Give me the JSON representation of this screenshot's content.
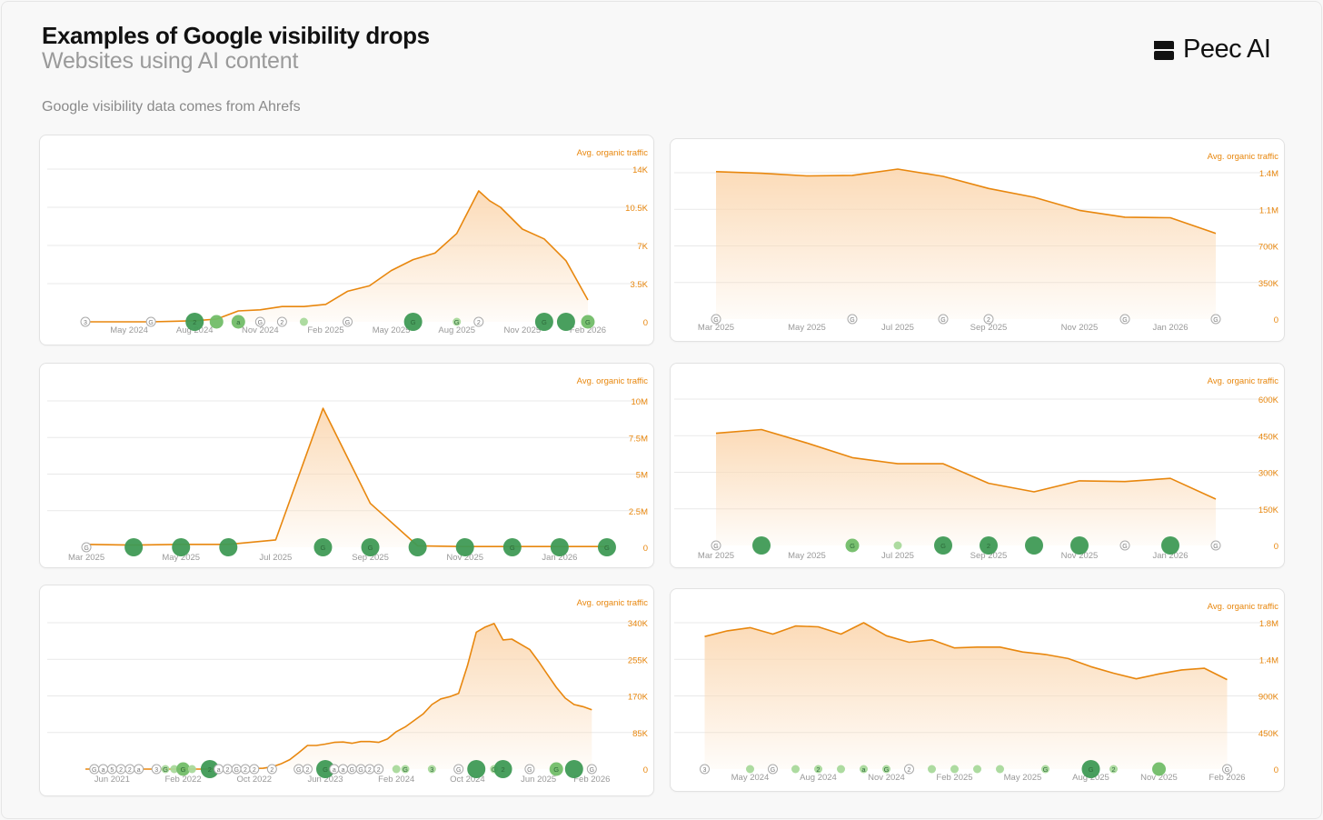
{
  "header": {
    "title": "Examples of Google visibility drops",
    "subtitle": "Websites using AI content",
    "source_note": "Google visibility data comes from Ahrefs",
    "brand": "Peec AI"
  },
  "colors": {
    "line": "#e8870e",
    "fill": "#fbd9b4",
    "axis_text": "#e8870e",
    "tick_text": "#999999",
    "grid": "#e9e9e9",
    "update_strong": "#3f9a55",
    "update_medium": "#72bd68",
    "update_light": "#a9d99b",
    "badge_stroke": "#aaaaaa"
  },
  "chart_data": [
    {
      "type": "area",
      "title": "",
      "ylabel": "Avg. organic traffic",
      "ylim": [
        0,
        14000
      ],
      "yticks": [
        0,
        3500,
        7000,
        10500,
        14000
      ],
      "ytick_labels": [
        "0",
        "3.5K",
        "7K",
        "10.5K",
        "14K"
      ],
      "xlim": [
        0,
        23.5
      ],
      "xticks": [
        2,
        5,
        8,
        11,
        14,
        17,
        20,
        23
      ],
      "xtick_labels": [
        "May 2024",
        "Aug 2024",
        "Nov 2024",
        "Feb 2025",
        "May 2025",
        "Aug 2025",
        "Nov 2025",
        "Feb 2026"
      ],
      "x": [
        0,
        1,
        2,
        3,
        4,
        5,
        6,
        7,
        8,
        9,
        10,
        11,
        12,
        13,
        14,
        15,
        16,
        17,
        18,
        18.5,
        19,
        20,
        21,
        22,
        23
      ],
      "values": [
        0,
        0,
        0,
        0,
        50,
        100,
        250,
        1000,
        1100,
        1400,
        1400,
        1600,
        2800,
        3300,
        4700,
        5700,
        6300,
        8100,
        12000,
        11100,
        10500,
        8500,
        7600,
        5600,
        2000
      ],
      "updates": [
        {
          "x": 0,
          "kind": "badge",
          "label": "3"
        },
        {
          "x": 3,
          "kind": "badge",
          "label": "G"
        },
        {
          "x": 5,
          "kind": "bubble",
          "size": 3,
          "label": "2"
        },
        {
          "x": 6,
          "kind": "bubble",
          "size": 2,
          "label": ""
        },
        {
          "x": 7,
          "kind": "bubble",
          "size": 2,
          "label": "a"
        },
        {
          "x": 8,
          "kind": "badge",
          "label": "G"
        },
        {
          "x": 9,
          "kind": "badge",
          "label": "2"
        },
        {
          "x": 10,
          "kind": "bubble",
          "size": 1,
          "label": ""
        },
        {
          "x": 12,
          "kind": "badge",
          "label": "G"
        },
        {
          "x": 15,
          "kind": "bubble",
          "size": 3,
          "label": "G"
        },
        {
          "x": 17,
          "kind": "bubble",
          "size": 1,
          "label": "G"
        },
        {
          "x": 18,
          "kind": "badge",
          "label": "2"
        },
        {
          "x": 21,
          "kind": "bubble",
          "size": 3,
          "label": "G"
        },
        {
          "x": 22,
          "kind": "bubble",
          "size": 3,
          "label": ""
        },
        {
          "x": 23,
          "kind": "bubble",
          "size": 2,
          "label": "G"
        }
      ]
    },
    {
      "type": "area",
      "title": "",
      "ylabel": "Avg. organic traffic",
      "ylim": [
        0,
        1400000
      ],
      "yticks": [
        0,
        350000,
        700000,
        1050000,
        1400000
      ],
      "ytick_labels": [
        "0",
        "350K",
        "700K",
        "1.1M",
        "1.4M"
      ],
      "xlim": [
        -0.5,
        11.5
      ],
      "xticks": [
        0,
        2,
        4,
        6,
        8,
        10
      ],
      "xtick_labels": [
        "Mar 2025",
        "May 2025",
        "Jul 2025",
        "Sep 2025",
        "Nov 2025",
        "Jan 2026"
      ],
      "x": [
        0,
        1,
        2,
        3,
        4,
        5,
        6,
        7,
        8,
        9,
        10,
        11
      ],
      "values": [
        1410000,
        1395000,
        1370000,
        1375000,
        1435000,
        1365000,
        1250000,
        1165000,
        1040000,
        975000,
        970000,
        820000
      ],
      "updates": [
        {
          "x": 0,
          "kind": "badge",
          "label": "G"
        },
        {
          "x": 3,
          "kind": "badge",
          "label": "G"
        },
        {
          "x": 5,
          "kind": "badge",
          "label": "G"
        },
        {
          "x": 6,
          "kind": "badge",
          "label": "2"
        },
        {
          "x": 9,
          "kind": "badge",
          "label": "G"
        },
        {
          "x": 11,
          "kind": "badge",
          "label": "G"
        }
      ]
    },
    {
      "type": "area",
      "title": "",
      "ylabel": "Avg. organic traffic",
      "ylim": [
        0,
        10000000
      ],
      "yticks": [
        0,
        2500000,
        5000000,
        7500000,
        10000000
      ],
      "ytick_labels": [
        "0",
        "2.5M",
        "5M",
        "7.5M",
        "10M"
      ],
      "xlim": [
        -0.5,
        11.5
      ],
      "xticks": [
        0,
        2,
        4,
        6,
        8,
        10
      ],
      "xtick_labels": [
        "Mar 2025",
        "May 2025",
        "Jul 2025",
        "Sep 2025",
        "Nov 2025",
        "Jan 2026"
      ],
      "x": [
        0,
        1,
        2,
        3,
        4,
        5,
        6,
        7,
        8,
        9,
        10,
        11
      ],
      "values": [
        200000,
        150000,
        200000,
        200000,
        500000,
        9500000,
        3000000,
        100000,
        50000,
        50000,
        50000,
        50000
      ],
      "updates": [
        {
          "x": 0,
          "kind": "badge",
          "label": "G"
        },
        {
          "x": 1,
          "kind": "bubble",
          "size": 3,
          "label": ""
        },
        {
          "x": 2,
          "kind": "bubble",
          "size": 3,
          "label": ""
        },
        {
          "x": 3,
          "kind": "bubble",
          "size": 3,
          "label": ""
        },
        {
          "x": 5,
          "kind": "bubble",
          "size": 3,
          "label": "G"
        },
        {
          "x": 6,
          "kind": "bubble",
          "size": 3,
          "label": "G"
        },
        {
          "x": 7,
          "kind": "bubble",
          "size": 3,
          "label": ""
        },
        {
          "x": 8,
          "kind": "bubble",
          "size": 3,
          "label": ""
        },
        {
          "x": 9,
          "kind": "bubble",
          "size": 3,
          "label": "G"
        },
        {
          "x": 10,
          "kind": "bubble",
          "size": 3,
          "label": ""
        },
        {
          "x": 11,
          "kind": "bubble",
          "size": 3,
          "label": "G"
        }
      ]
    },
    {
      "type": "area",
      "title": "",
      "ylabel": "Avg. organic traffic",
      "ylim": [
        0,
        600000
      ],
      "yticks": [
        0,
        150000,
        300000,
        450000,
        600000
      ],
      "ytick_labels": [
        "0",
        "150K",
        "300K",
        "450K",
        "600K"
      ],
      "xlim": [
        -0.5,
        11.5
      ],
      "xticks": [
        0,
        2,
        4,
        6,
        8,
        10
      ],
      "xtick_labels": [
        "Mar 2025",
        "May 2025",
        "Jul 2025",
        "Sep 2025",
        "Nov 2025",
        "Jan 2026"
      ],
      "x": [
        0,
        1,
        2,
        3,
        4,
        5,
        6,
        7,
        8,
        9,
        10,
        11
      ],
      "values": [
        460000,
        475000,
        420000,
        360000,
        335000,
        335000,
        255000,
        220000,
        265000,
        262000,
        275000,
        190000
      ],
      "updates": [
        {
          "x": 0,
          "kind": "badge",
          "label": "G"
        },
        {
          "x": 1,
          "kind": "bubble",
          "size": 3,
          "label": ""
        },
        {
          "x": 3,
          "kind": "bubble",
          "size": 2,
          "label": "G"
        },
        {
          "x": 4,
          "kind": "bubble",
          "size": 1,
          "label": ""
        },
        {
          "x": 5,
          "kind": "bubble",
          "size": 3,
          "label": "G"
        },
        {
          "x": 6,
          "kind": "bubble",
          "size": 3,
          "label": "2"
        },
        {
          "x": 7,
          "kind": "bubble",
          "size": 3,
          "label": ""
        },
        {
          "x": 8,
          "kind": "bubble",
          "size": 3,
          "label": ""
        },
        {
          "x": 9,
          "kind": "badge",
          "label": "G"
        },
        {
          "x": 10,
          "kind": "bubble",
          "size": 3,
          "label": ""
        },
        {
          "x": 11,
          "kind": "badge",
          "label": "G"
        }
      ]
    },
    {
      "type": "area",
      "title": "",
      "ylabel": "Avg. organic traffic",
      "ylim": [
        0,
        340000
      ],
      "yticks": [
        0,
        85000,
        170000,
        255000,
        340000
      ],
      "ytick_labels": [
        "0",
        "85K",
        "170K",
        "255K",
        "340K"
      ],
      "xlim": [
        0,
        58.5
      ],
      "xticks": [
        3,
        11,
        19,
        27,
        35,
        43,
        51,
        57
      ],
      "xtick_labels": [
        "Jun 2021",
        "Feb 2022",
        "Oct 2022",
        "Jun 2023",
        "Feb 2024",
        "Oct 2024",
        "Jun 2025",
        "Feb 2026"
      ],
      "x": [
        0,
        5,
        10,
        15,
        20,
        21,
        22,
        23,
        24,
        25,
        26,
        27,
        28,
        29,
        30,
        31,
        32,
        33,
        34,
        35,
        36,
        37,
        38,
        39,
        40,
        41,
        42,
        43,
        44,
        45,
        46,
        47,
        48,
        49,
        50,
        51,
        52,
        53,
        54,
        55,
        56,
        57
      ],
      "values": [
        0,
        0,
        0,
        0,
        2000,
        5000,
        12000,
        22000,
        38000,
        55000,
        55000,
        58000,
        62000,
        63000,
        60000,
        64000,
        64000,
        62000,
        70000,
        87000,
        98000,
        113000,
        128000,
        150000,
        163000,
        168000,
        176000,
        240000,
        318000,
        330000,
        338000,
        300000,
        302000,
        290000,
        278000,
        250000,
        220000,
        190000,
        165000,
        150000,
        145000,
        138000
      ],
      "updates": [
        {
          "x": 1,
          "kind": "badge",
          "label": "G"
        },
        {
          "x": 2,
          "kind": "badge",
          "label": "a"
        },
        {
          "x": 3,
          "kind": "badge",
          "label": "5"
        },
        {
          "x": 4,
          "kind": "badge",
          "label": "2"
        },
        {
          "x": 5,
          "kind": "badge",
          "label": "2"
        },
        {
          "x": 6,
          "kind": "badge",
          "label": "a"
        },
        {
          "x": 8,
          "kind": "badge",
          "label": "3"
        },
        {
          "x": 9,
          "kind": "bubble",
          "size": 1,
          "label": "G"
        },
        {
          "x": 10,
          "kind": "bubble",
          "size": 1,
          "label": ""
        },
        {
          "x": 11,
          "kind": "bubble",
          "size": 2,
          "label": "G"
        },
        {
          "x": 12,
          "kind": "bubble",
          "size": 1,
          "label": ""
        },
        {
          "x": 14,
          "kind": "bubble",
          "size": 3,
          "label": "2"
        },
        {
          "x": 15,
          "kind": "badge",
          "label": "a"
        },
        {
          "x": 16,
          "kind": "badge",
          "label": "2"
        },
        {
          "x": 17,
          "kind": "badge",
          "label": "G"
        },
        {
          "x": 18,
          "kind": "badge",
          "label": "2"
        },
        {
          "x": 19,
          "kind": "badge",
          "label": "2"
        },
        {
          "x": 21,
          "kind": "badge",
          "label": "2"
        },
        {
          "x": 24,
          "kind": "badge",
          "label": "G"
        },
        {
          "x": 25,
          "kind": "badge",
          "label": "2"
        },
        {
          "x": 27,
          "kind": "bubble",
          "size": 3,
          "label": "G"
        },
        {
          "x": 28,
          "kind": "badge",
          "label": "a"
        },
        {
          "x": 29,
          "kind": "badge",
          "label": "a"
        },
        {
          "x": 30,
          "kind": "badge",
          "label": "G"
        },
        {
          "x": 31,
          "kind": "badge",
          "label": "G"
        },
        {
          "x": 32,
          "kind": "badge",
          "label": "2"
        },
        {
          "x": 33,
          "kind": "badge",
          "label": "2"
        },
        {
          "x": 35,
          "kind": "bubble",
          "size": 1,
          "label": ""
        },
        {
          "x": 36,
          "kind": "bubble",
          "size": 1,
          "label": "G"
        },
        {
          "x": 39,
          "kind": "bubble",
          "size": 1,
          "label": "3"
        },
        {
          "x": 42,
          "kind": "badge",
          "label": "G"
        },
        {
          "x": 44,
          "kind": "bubble",
          "size": 3,
          "label": ""
        },
        {
          "x": 46,
          "kind": "bubble",
          "size": 1,
          "label": "G"
        },
        {
          "x": 47,
          "kind": "bubble",
          "size": 3,
          "label": "2"
        },
        {
          "x": 50,
          "kind": "badge",
          "label": "G"
        },
        {
          "x": 53,
          "kind": "bubble",
          "size": 2,
          "label": "G"
        },
        {
          "x": 55,
          "kind": "bubble",
          "size": 3,
          "label": ""
        },
        {
          "x": 57,
          "kind": "badge",
          "label": "G"
        }
      ]
    },
    {
      "type": "area",
      "title": "",
      "ylabel": "Avg. organic traffic",
      "ylim": [
        0,
        1800000
      ],
      "yticks": [
        0,
        450000,
        900000,
        1350000,
        1800000
      ],
      "ytick_labels": [
        "0",
        "450K",
        "900K",
        "1.4M",
        "1.8M"
      ],
      "xlim": [
        -0.5,
        23.5
      ],
      "xticks": [
        2,
        5,
        8,
        11,
        14,
        17,
        20,
        23
      ],
      "xtick_labels": [
        "May 2024",
        "Aug 2024",
        "Nov 2024",
        "Feb 2025",
        "May 2025",
        "Aug 2025",
        "Nov 2025",
        "Feb 2026"
      ],
      "x": [
        0,
        1,
        2,
        3,
        4,
        5,
        6,
        7,
        8,
        9,
        10,
        11,
        12,
        13,
        14,
        15,
        16,
        17,
        18,
        19,
        20,
        21,
        22,
        23
      ],
      "values": [
        1630000,
        1700000,
        1740000,
        1660000,
        1760000,
        1750000,
        1660000,
        1800000,
        1640000,
        1560000,
        1590000,
        1490000,
        1500000,
        1500000,
        1440000,
        1410000,
        1360000,
        1260000,
        1180000,
        1110000,
        1170000,
        1220000,
        1240000,
        1100000
      ],
      "updates": [
        {
          "x": 0,
          "kind": "badge",
          "label": "3"
        },
        {
          "x": 2,
          "kind": "bubble",
          "size": 1,
          "label": ""
        },
        {
          "x": 3,
          "kind": "badge",
          "label": "G"
        },
        {
          "x": 4,
          "kind": "bubble",
          "size": 1,
          "label": ""
        },
        {
          "x": 5,
          "kind": "bubble",
          "size": 1,
          "label": "2"
        },
        {
          "x": 6,
          "kind": "bubble",
          "size": 1,
          "label": ""
        },
        {
          "x": 7,
          "kind": "bubble",
          "size": 1,
          "label": "a"
        },
        {
          "x": 8,
          "kind": "bubble",
          "size": 1,
          "label": "G"
        },
        {
          "x": 9,
          "kind": "badge",
          "label": "2"
        },
        {
          "x": 10,
          "kind": "bubble",
          "size": 1,
          "label": ""
        },
        {
          "x": 11,
          "kind": "bubble",
          "size": 1,
          "label": ""
        },
        {
          "x": 12,
          "kind": "bubble",
          "size": 1,
          "label": ""
        },
        {
          "x": 13,
          "kind": "bubble",
          "size": 1,
          "label": ""
        },
        {
          "x": 15,
          "kind": "bubble",
          "size": 1,
          "label": "G"
        },
        {
          "x": 17,
          "kind": "bubble",
          "size": 3,
          "label": "G"
        },
        {
          "x": 18,
          "kind": "bubble",
          "size": 1,
          "label": "2"
        },
        {
          "x": 20,
          "kind": "bubble",
          "size": 2,
          "label": ""
        },
        {
          "x": 23,
          "kind": "badge",
          "label": "G"
        }
      ]
    }
  ]
}
